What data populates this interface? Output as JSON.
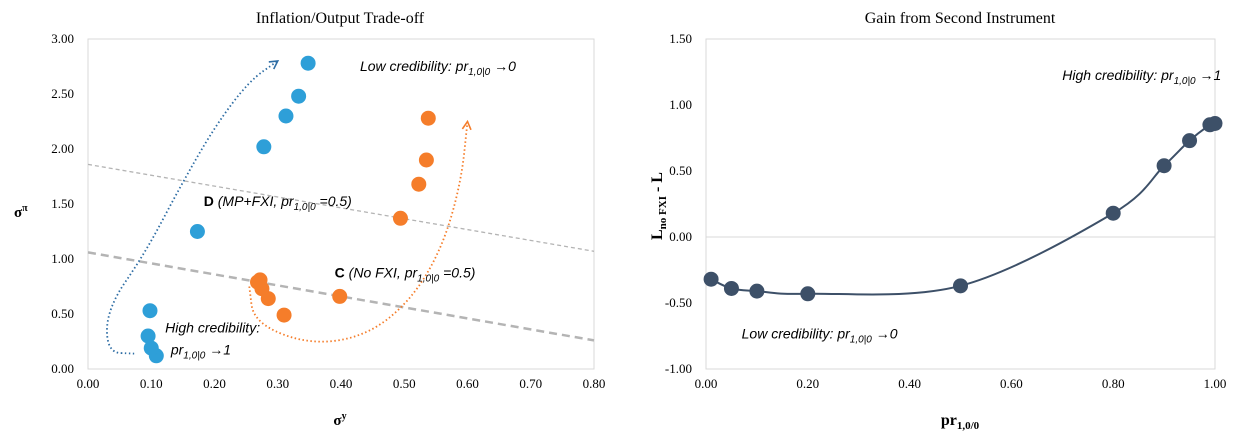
{
  "chart_data": [
    {
      "type": "scatter",
      "title": "Inflation/Output Trade-off",
      "xlabel": "σ",
      "xlabel_sup": "y",
      "ylabel": "σ",
      "ylabel_sup": "π",
      "xlim": [
        0,
        0.8
      ],
      "ylim": [
        0,
        3
      ],
      "xticks": [
        0.0,
        0.1,
        0.2,
        0.3,
        0.4,
        0.5,
        0.6,
        0.7,
        0.8
      ],
      "xtick_labels": [
        "0.00",
        "0.10",
        "0.20",
        "0.30",
        "0.40",
        "0.50",
        "0.60",
        "0.70",
        "0.80"
      ],
      "yticks": [
        0.0,
        0.5,
        1.0,
        1.5,
        2.0,
        2.5,
        3.0
      ],
      "ytick_labels": [
        "0.00",
        "0.50",
        "1.00",
        "1.50",
        "2.00",
        "2.50",
        "3.00"
      ],
      "grid": false,
      "series": [
        {
          "color": "#2e9fd8",
          "points": [
            [
              0.108,
              0.12
            ],
            [
              0.1,
              0.19
            ],
            [
              0.095,
              0.3
            ],
            [
              0.098,
              0.53
            ],
            [
              0.173,
              1.25
            ],
            [
              0.278,
              2.02
            ],
            [
              0.313,
              2.3
            ],
            [
              0.333,
              2.48
            ],
            [
              0.348,
              2.78
            ]
          ]
        },
        {
          "color": "#f57d2a",
          "points": [
            [
              0.31,
              0.49
            ],
            [
              0.285,
              0.64
            ],
            [
              0.275,
              0.73
            ],
            [
              0.268,
              0.79
            ],
            [
              0.272,
              0.81
            ],
            [
              0.398,
              0.66
            ],
            [
              0.494,
              1.37
            ],
            [
              0.523,
              1.68
            ],
            [
              0.535,
              1.9
            ],
            [
              0.538,
              2.28
            ]
          ]
        }
      ],
      "lines": [
        {
          "style": "dashed-thin",
          "color": "#b4b4b4",
          "x": [
            0,
            0.8
          ],
          "y": [
            1.86,
            1.07
          ]
        },
        {
          "style": "dashed-thick",
          "color": "#b4b4b4",
          "x": [
            0,
            0.8
          ],
          "y": [
            1.06,
            0.26
          ]
        }
      ],
      "arrows": [
        {
          "color": "#2e6da4",
          "points": [
            [
              0.073,
              0.14
            ],
            [
              0.03,
              0.15
            ],
            [
              0.03,
              0.55
            ],
            [
              0.09,
              1.05
            ],
            [
              0.145,
              1.65
            ],
            [
              0.2,
              2.2
            ],
            [
              0.255,
              2.62
            ],
            [
              0.3,
              2.8
            ]
          ]
        },
        {
          "color": "#f57d2a",
          "points": [
            [
              0.255,
              0.75
            ],
            [
              0.262,
              0.42
            ],
            [
              0.35,
              0.22
            ],
            [
              0.44,
              0.3
            ],
            [
              0.51,
              0.62
            ],
            [
              0.56,
              1.1
            ],
            [
              0.59,
              1.7
            ],
            [
              0.6,
              2.25
            ]
          ]
        }
      ],
      "annotations": [
        {
          "key": "low",
          "text": "Low credibility: pr",
          "sub": "1,0|0",
          "tail": " →0",
          "x": 0.43,
          "y": 2.71
        },
        {
          "key": "d",
          "bold": "D",
          "text": " (MP+FXI,  pr",
          "sub": "1,0|0",
          "tail": " =0.5)",
          "x": 0.183,
          "y": 1.48
        },
        {
          "key": "c",
          "bold": "C",
          "text": " (No FXI,  pr",
          "sub": "1,0|0",
          "tail": " =0.5)",
          "x": 0.39,
          "y": 0.83
        },
        {
          "key": "hc1",
          "text": "High credibility:",
          "x": 0.122,
          "y": 0.33
        },
        {
          "key": "hc2",
          "text": "pr",
          "sub": "1,0|0",
          "tail": " →1",
          "x": 0.131,
          "y": 0.13
        }
      ]
    },
    {
      "type": "line",
      "title": "Gain from Second Instrument",
      "xlabel": "pr",
      "xlabel_sub": "1,0/0",
      "ylabel": "L",
      "ylabel_sub": "no FXI",
      "ylabel_tail": " - L",
      "xlim": [
        0,
        1
      ],
      "ylim": [
        -1,
        1.5
      ],
      "xticks": [
        0.0,
        0.2,
        0.4,
        0.6,
        0.8,
        1.0
      ],
      "xtick_labels": [
        "0.00",
        "0.20",
        "0.40",
        "0.60",
        "0.80",
        "1.00"
      ],
      "yticks": [
        -1.0,
        -0.5,
        0.0,
        0.5,
        1.0,
        1.5
      ],
      "ytick_labels": [
        "-1.00",
        "-0.50",
        "0.00",
        "0.50",
        "1.00",
        "1.50"
      ],
      "grid": false,
      "series": [
        {
          "color": "#3d5068",
          "x": [
            0.01,
            0.05,
            0.1,
            0.2,
            0.5,
            0.8,
            0.9,
            0.95,
            0.99,
            1.0
          ],
          "y": [
            -0.32,
            -0.39,
            -0.41,
            -0.43,
            -0.37,
            0.18,
            0.54,
            0.73,
            0.85,
            0.86
          ]
        }
      ],
      "annotations": [
        {
          "key": "high",
          "text": "High credibility: pr",
          "sub": "1,0|0",
          "tail": " →1",
          "x": 0.7,
          "y": 1.19
        },
        {
          "key": "low",
          "text": "Low credibility: pr",
          "sub": "1,0|0",
          "tail": " →0",
          "x": 0.07,
          "y": -0.77
        }
      ]
    }
  ]
}
